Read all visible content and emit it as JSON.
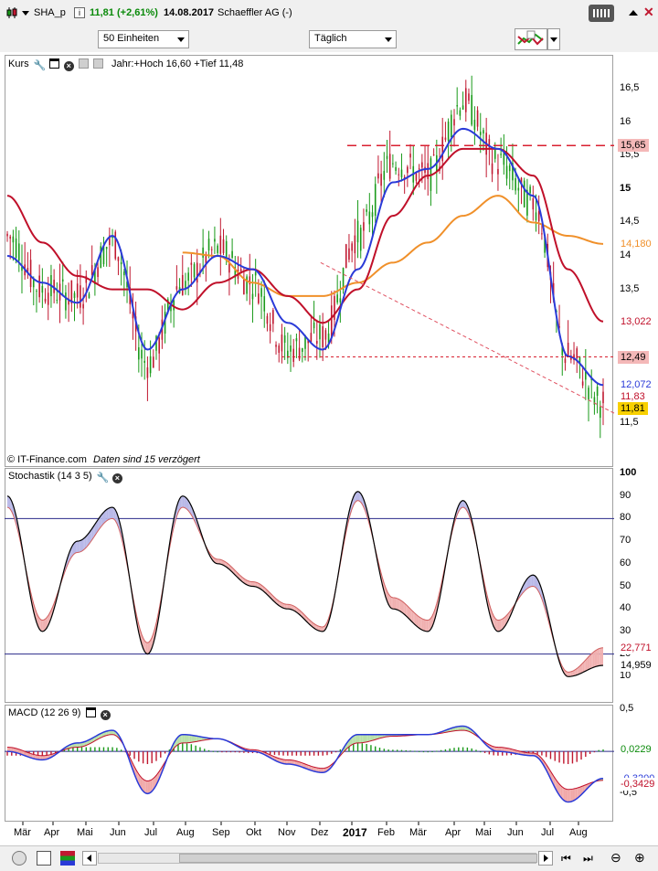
{
  "header": {
    "symbol": "SHA_p",
    "price_change": "11,81 (+2,61%)",
    "date": "14.08.2017",
    "name": "Schaeffler AG (-)"
  },
  "toolbar": {
    "units_select": "50 Einheiten",
    "interval_select": "Täglich"
  },
  "price_panel": {
    "title": "Kurs",
    "year_range": "Jahr:+Hoch 16,60 +Tief 11,48",
    "copyright": "© IT-Finance.com",
    "delay_note": "Daten sind 15 verzögert",
    "ticks": [
      "16,5",
      "16",
      "15,5",
      "15",
      "14,5",
      "14",
      "13,5",
      "13",
      "12,5",
      "12",
      "11,5"
    ],
    "tags": [
      {
        "text": "15,65",
        "bg": "#f4b8b8",
        "color": "#000"
      },
      {
        "text": "14,180",
        "bg": "#ffffff",
        "color": "#f0902a"
      },
      {
        "text": "13,022",
        "bg": "#ffffff",
        "color": "#c0102a"
      },
      {
        "text": "12,49",
        "bg": "#f4b8b8",
        "color": "#000"
      },
      {
        "text": "12,072",
        "bg": "#ffffff",
        "color": "#2a3ad8"
      },
      {
        "text": "11,83",
        "bg": "#ffffff",
        "color": "#c0102a"
      },
      {
        "text": "11,81",
        "bg": "#f8d000",
        "color": "#000"
      }
    ]
  },
  "stoch_panel": {
    "title": "Stochastik (14 3 5)",
    "ticks": [
      "100",
      "90",
      "80",
      "70",
      "60",
      "50",
      "40",
      "30",
      "20",
      "10"
    ],
    "tags": [
      {
        "text": "22,771",
        "bg": "#ffffff",
        "color": "#c0102a"
      },
      {
        "text": "14,959",
        "bg": "#ffffff",
        "color": "#000"
      }
    ]
  },
  "macd_panel": {
    "title": "MACD (12 26 9)",
    "ticks": [
      "0,5",
      "0",
      "-0,5"
    ],
    "tags": [
      {
        "text": "0,0229",
        "bg": "#ffffff",
        "color": "#0a8a0a"
      },
      {
        "text": "-0,3200",
        "bg": "#ffffff",
        "color": "#2a3ad8"
      },
      {
        "text": "-0,3429",
        "bg": "#ffffff",
        "color": "#c0102a"
      }
    ]
  },
  "months": [
    "Mär",
    "Apr",
    "Mai",
    "Jun",
    "Jul",
    "Aug",
    "Sep",
    "Okt",
    "Nov",
    "Dez",
    "2017",
    "Feb",
    "Mär",
    "Apr",
    "Mai",
    "Jun",
    "Jul",
    "Aug"
  ],
  "colors": {
    "sma_fast": "#2a3ad8",
    "sma_slow": "#c0102a",
    "sma_long": "#f0902a",
    "up": "#1a9a1a",
    "down": "#c01830"
  },
  "chart_data": [
    {
      "type": "line",
      "series_kind": "price_candles",
      "ylim": [
        11.2,
        16.8
      ],
      "x": [
        "Mär",
        "Apr",
        "Mai",
        "Jun",
        "Jul",
        "Aug",
        "Sep",
        "Okt",
        "Nov",
        "Dez",
        "2017",
        "Feb",
        "Mär",
        "Apr",
        "Mai",
        "Jun",
        "Jul",
        "Aug"
      ],
      "price": [
        14.3,
        13.5,
        13.4,
        14.2,
        12.4,
        13.6,
        14.1,
        13.6,
        12.6,
        12.8,
        14.3,
        15.4,
        15.2,
        16.3,
        15.4,
        14.8,
        12.5,
        11.81
      ],
      "sma_fast": [
        14.0,
        13.6,
        13.3,
        14.3,
        12.6,
        13.5,
        14.0,
        13.8,
        13.0,
        12.6,
        13.8,
        15.1,
        15.3,
        15.9,
        15.6,
        14.9,
        12.5,
        12.07
      ],
      "sma_slow": [
        14.9,
        14.2,
        13.7,
        13.5,
        13.5,
        13.2,
        13.6,
        13.8,
        13.4,
        13.0,
        13.5,
        14.6,
        15.2,
        15.6,
        15.6,
        15.2,
        13.8,
        13.02
      ],
      "sma_long": [
        null,
        null,
        null,
        null,
        null,
        14.05,
        14.0,
        13.6,
        13.4,
        13.4,
        13.6,
        13.9,
        14.2,
        14.6,
        14.9,
        14.5,
        14.3,
        14.18
      ],
      "horizontal_lines": [
        15.65,
        12.49
      ],
      "trend_line": {
        "from": [
          "Nov",
          13.9
        ],
        "to": [
          "Aug",
          11.65
        ]
      },
      "year_high": 16.6,
      "year_low": 11.48
    },
    {
      "type": "line",
      "series_kind": "stochastic",
      "ylim": [
        0,
        100
      ],
      "levels": [
        80,
        20
      ],
      "x": [
        "Mär",
        "Apr",
        "Mai",
        "Jun",
        "Jul",
        "Aug",
        "Sep",
        "Okt",
        "Nov",
        "Dez",
        "2017",
        "Feb",
        "Mär",
        "Apr",
        "Mai",
        "Jun",
        "Jul",
        "Aug"
      ],
      "k": [
        90,
        30,
        70,
        85,
        20,
        90,
        60,
        50,
        40,
        30,
        92,
        40,
        30,
        88,
        30,
        55,
        10,
        14.959
      ],
      "d": [
        85,
        35,
        65,
        80,
        25,
        85,
        62,
        52,
        42,
        32,
        88,
        45,
        35,
        85,
        35,
        50,
        12,
        22.771
      ]
    },
    {
      "type": "line",
      "series_kind": "macd",
      "ylim": [
        -0.8,
        0.5
      ],
      "x": [
        "Mär",
        "Apr",
        "Mai",
        "Jun",
        "Jul",
        "Aug",
        "Sep",
        "Okt",
        "Nov",
        "Dez",
        "2017",
        "Feb",
        "Mär",
        "Apr",
        "Mai",
        "Jun",
        "Jul",
        "Aug"
      ],
      "macd": [
        0.0,
        -0.1,
        0.1,
        0.25,
        -0.5,
        0.2,
        0.15,
        0.0,
        -0.15,
        -0.25,
        0.2,
        0.2,
        0.2,
        0.3,
        0.0,
        -0.05,
        -0.6,
        -0.32
      ],
      "signal": [
        0.05,
        -0.05,
        0.05,
        0.2,
        -0.35,
        0.1,
        0.15,
        0.02,
        -0.1,
        -0.2,
        0.1,
        0.18,
        0.2,
        0.25,
        0.05,
        -0.02,
        -0.45,
        -0.3429
      ],
      "histogram": [
        -0.05,
        -0.05,
        0.05,
        0.05,
        -0.15,
        0.1,
        0.0,
        -0.02,
        -0.05,
        -0.05,
        0.1,
        0.02,
        0.0,
        0.05,
        -0.05,
        -0.03,
        -0.15,
        0.0229
      ]
    }
  ]
}
